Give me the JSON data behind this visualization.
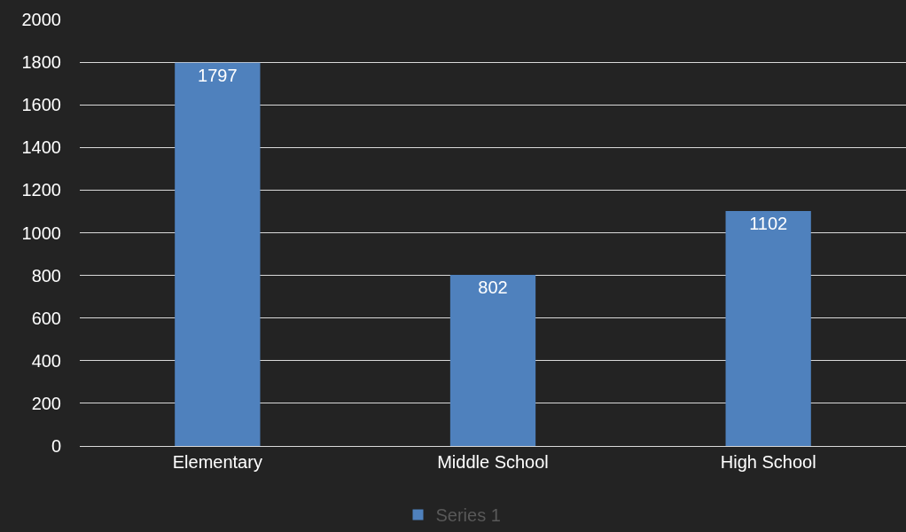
{
  "chart_data": {
    "type": "bar",
    "categories": [
      "Elementary",
      "Middle School",
      "High School"
    ],
    "series": [
      {
        "name": "Series 1",
        "color": "#4f81bd",
        "values": [
          1797,
          802,
          1102
        ]
      }
    ],
    "ylim": [
      0,
      2000
    ],
    "yticks": [
      0,
      200,
      400,
      600,
      800,
      1000,
      1200,
      1400,
      1600,
      1800,
      2000
    ],
    "grid": "y",
    "legend": "bottom",
    "data_labels": true
  }
}
